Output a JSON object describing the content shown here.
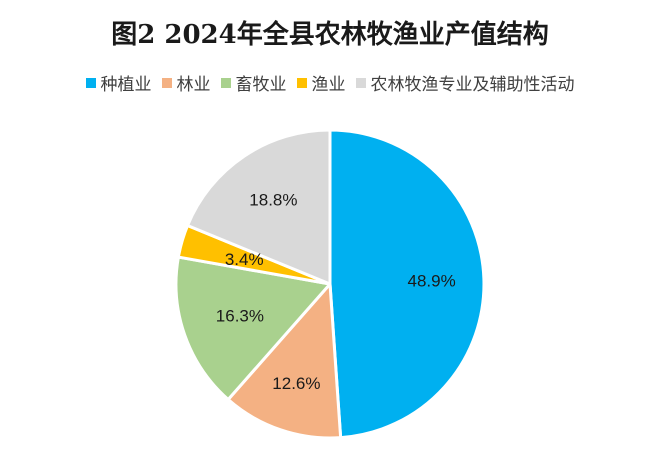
{
  "chart_data": {
    "type": "pie",
    "title": "图2 2024年全县农林牧渔业产值结构",
    "categories": [
      "种植业",
      "林业",
      "畜牧业",
      "渔业",
      "农林牧渔专业及辅助性活动"
    ],
    "values": [
      48.9,
      12.6,
      16.3,
      3.4,
      18.8
    ],
    "data_labels": [
      "48.9%",
      "12.6%",
      "16.3%",
      "3.4%",
      "18.8%"
    ],
    "colors": [
      "#00B0F0",
      "#F4B183",
      "#A9D18E",
      "#FFC000",
      "#D9D9D9"
    ],
    "legend_position": "top",
    "start_angle": "12 o'clock",
    "direction": "clockwise"
  }
}
